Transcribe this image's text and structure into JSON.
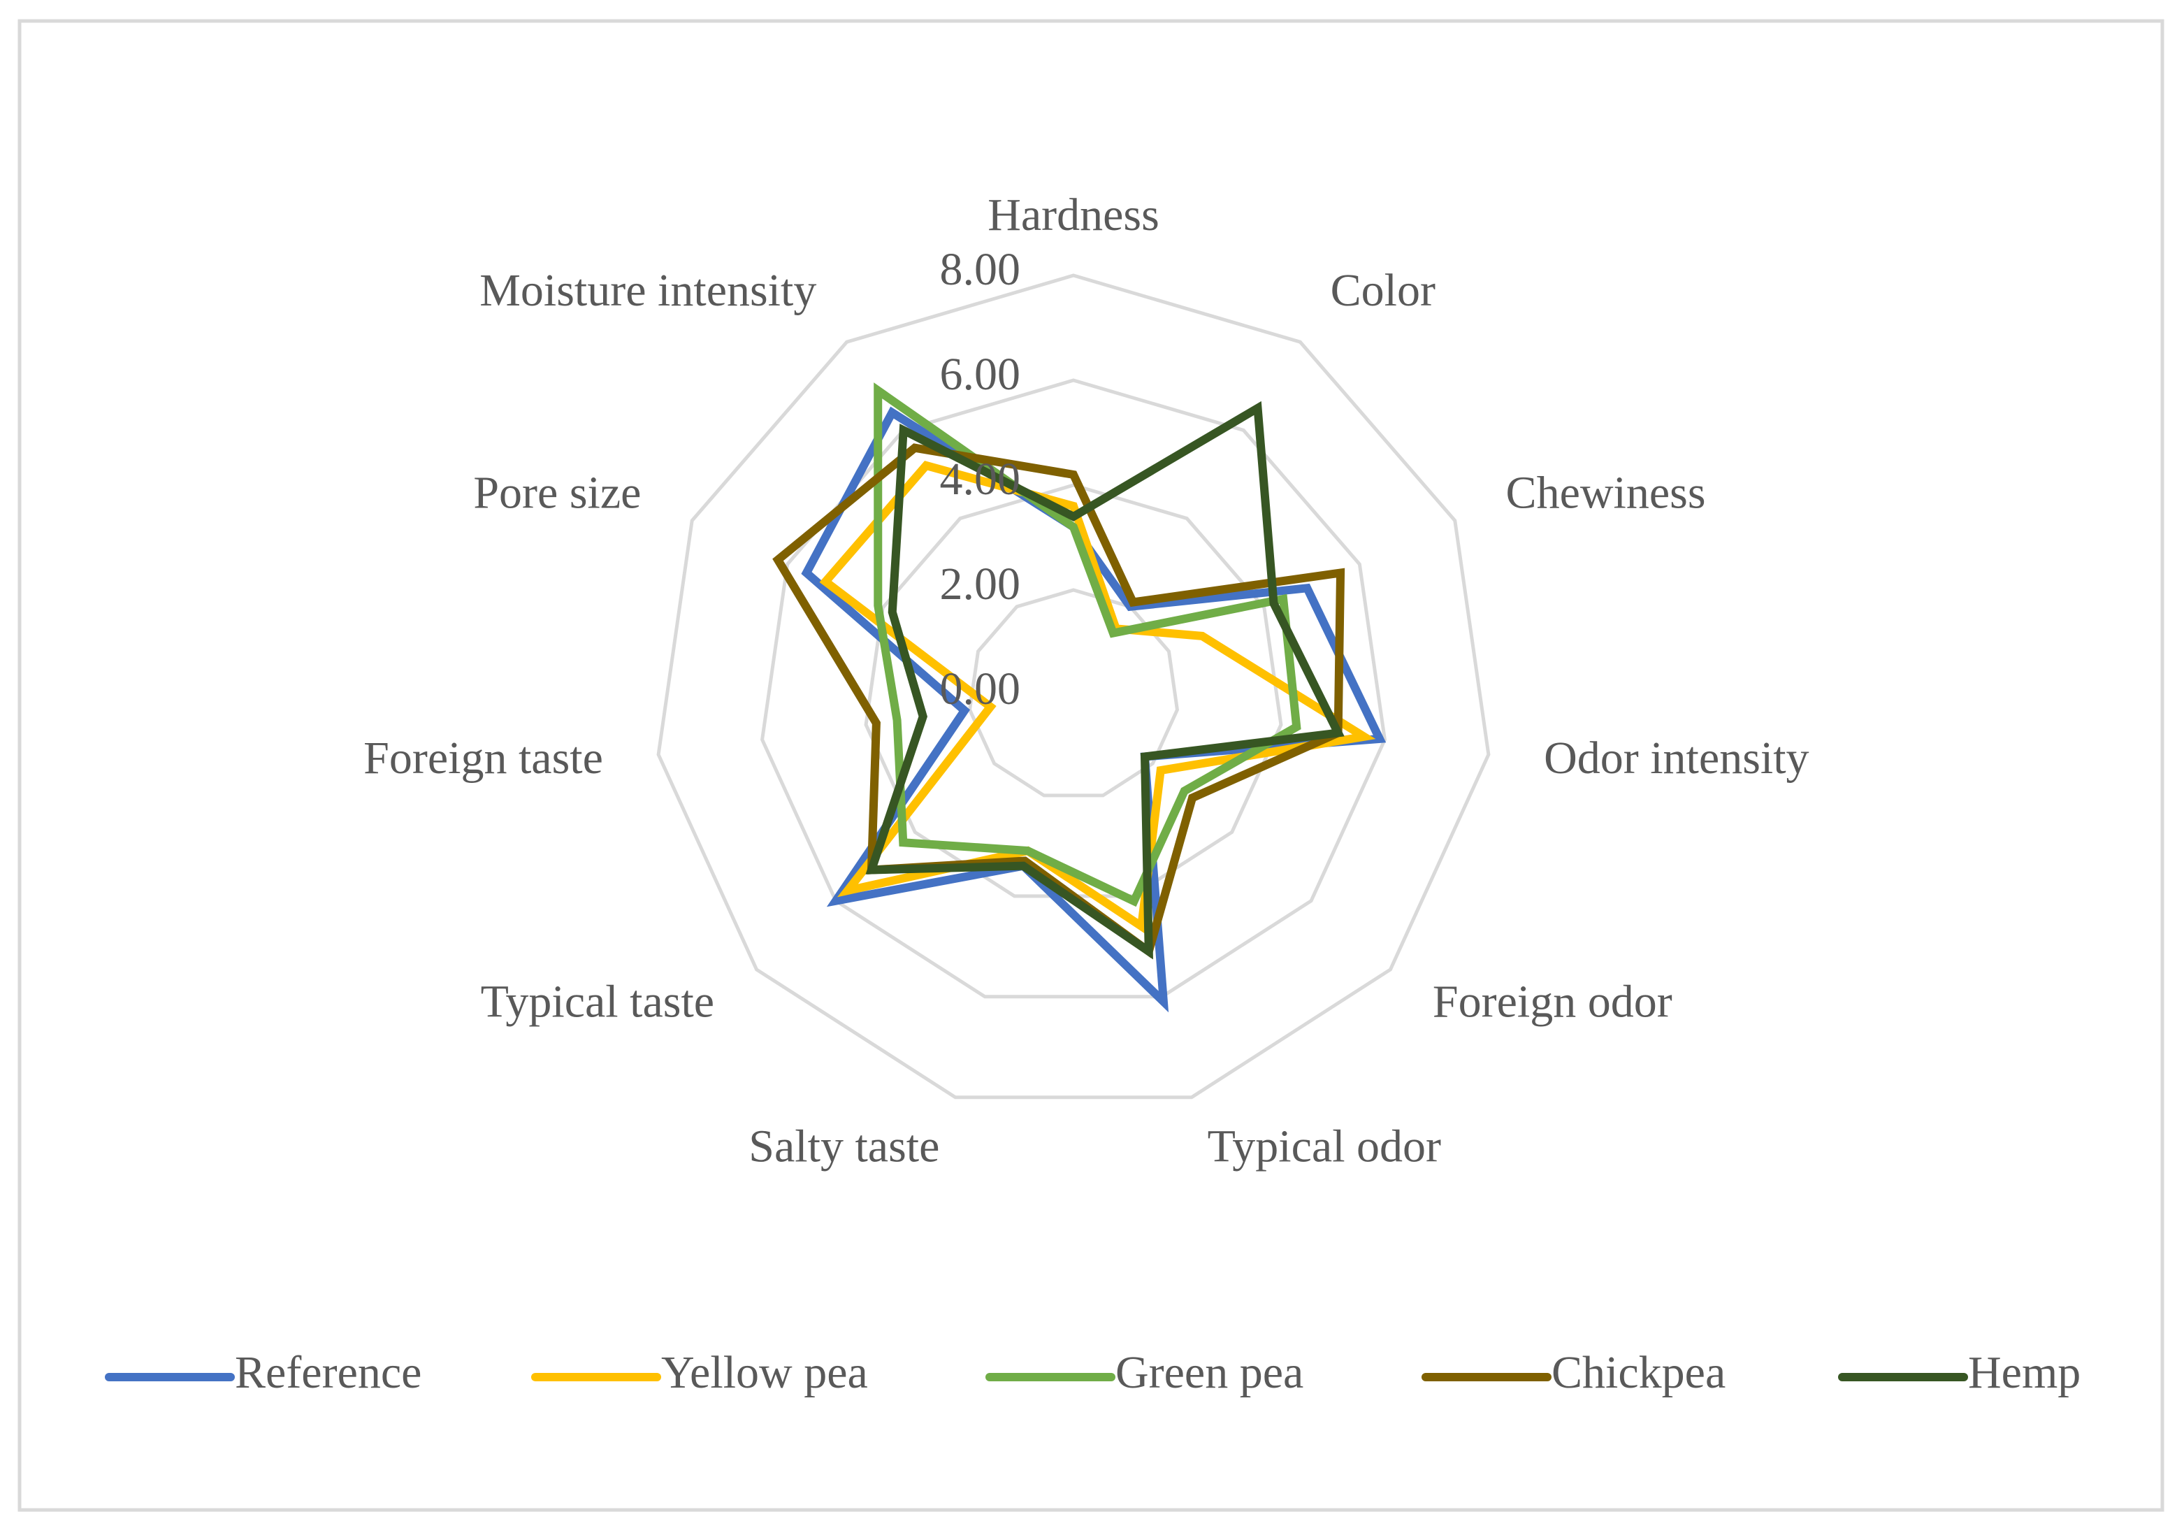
{
  "chart_data": {
    "type": "radar",
    "categories": [
      "Hardness",
      "Color",
      "Chewiness",
      "Odor intensity",
      "Foreign odor",
      "Typical odor",
      "Salty taste",
      "Typical taste",
      "Foreign taste",
      "Pore size",
      "Moisture intensity"
    ],
    "ylim": [
      0,
      8
    ],
    "yticks": [
      {
        "value": 0,
        "label": "0.00"
      },
      {
        "value": 2,
        "label": "2.00"
      },
      {
        "value": 4,
        "label": "4.00"
      },
      {
        "value": 6,
        "label": "6.00"
      },
      {
        "value": 8,
        "label": "8.00"
      }
    ],
    "grid": true,
    "legend": "bottom",
    "series": [
      {
        "name": "Reference",
        "color": "#4472c4",
        "values": [
          3.2,
          2.0,
          4.9,
          5.9,
          1.8,
          6.1,
          3.4,
          6.0,
          2.1,
          5.6,
          6.4
        ]
      },
      {
        "name": "Yellow pea",
        "color": "#ffc000",
        "values": [
          3.6,
          1.5,
          2.7,
          5.6,
          2.2,
          4.6,
          3.1,
          5.7,
          1.6,
          5.2,
          5.2
        ]
      },
      {
        "name": "Green pea",
        "color": "#70ad47",
        "values": [
          3.2,
          1.4,
          4.4,
          4.3,
          2.8,
          4.1,
          3.1,
          4.3,
          3.4,
          4.1,
          6.9
        ]
      },
      {
        "name": "Chickpea",
        "color": "#7f6000",
        "values": [
          4.2,
          2.1,
          5.6,
          5.1,
          3.0,
          5.1,
          3.3,
          5.1,
          3.8,
          6.2,
          5.6
        ]
      },
      {
        "name": "Hemp",
        "color": "#375623",
        "values": [
          3.4,
          6.5,
          4.2,
          5.1,
          1.8,
          5.1,
          3.4,
          5.1,
          2.9,
          3.8,
          6.0
        ]
      }
    ]
  }
}
